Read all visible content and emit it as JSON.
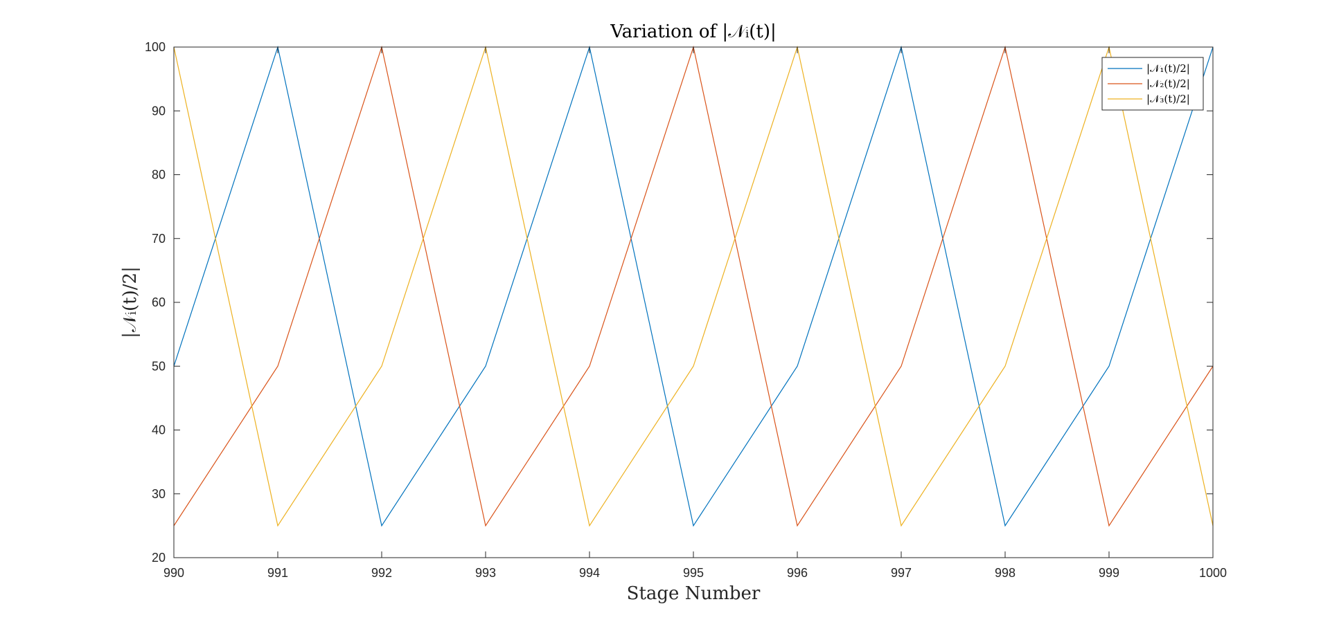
{
  "chart_data": {
    "type": "line",
    "title": "Variation of |𝒩ᵢ(t)|",
    "xlabel": "Stage Number",
    "ylabel": "|𝒩ᵢ(t)/2|",
    "xlim": [
      990,
      1000
    ],
    "ylim": [
      20,
      100
    ],
    "xticks": [
      990,
      991,
      992,
      993,
      994,
      995,
      996,
      997,
      998,
      999,
      1000
    ],
    "yticks": [
      20,
      30,
      40,
      50,
      60,
      70,
      80,
      90,
      100
    ],
    "grid": false,
    "legend_position": "top-right",
    "x": [
      990,
      991,
      992,
      993,
      994,
      995,
      996,
      997,
      998,
      999,
      1000
    ],
    "series": [
      {
        "name": "|𝒩₁(t)/2|",
        "color": "#0072BD",
        "values": [
          50,
          100,
          25,
          50,
          100,
          25,
          50,
          100,
          25,
          50,
          100
        ]
      },
      {
        "name": "|𝒩₂(t)/2|",
        "color": "#D95319",
        "values": [
          25,
          50,
          100,
          25,
          50,
          100,
          25,
          50,
          100,
          25,
          50
        ]
      },
      {
        "name": "|𝒩₃(t)/2|",
        "color": "#EDB120",
        "values": [
          100,
          25,
          50,
          100,
          25,
          50,
          100,
          25,
          50,
          100,
          25
        ]
      }
    ]
  }
}
